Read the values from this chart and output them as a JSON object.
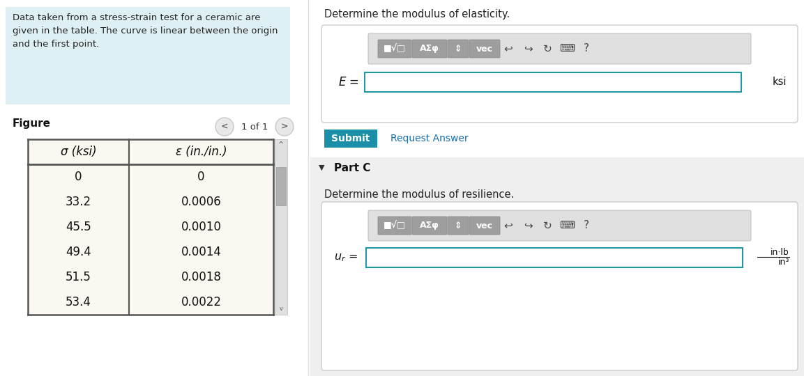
{
  "bg_color": "#ffffff",
  "left_panel_bg": "#dff0f5",
  "left_panel_text": "Data taken from a stress-strain test for a ceramic are\ngiven in the table. The curve is linear between the origin\nand the first point.",
  "figure_label": "Figure",
  "pagination": "1 of 1",
  "table_header_sigma": "σ (ksi)",
  "table_header_epsilon": "ε (in./in.)",
  "table_data_sigma": [
    "0",
    "33.2",
    "45.5",
    "49.4",
    "51.5",
    "53.4"
  ],
  "table_data_epsilon": [
    "0",
    "0.0006",
    "0.0010",
    "0.0014",
    "0.0018",
    "0.0022"
  ],
  "table_bg": "#faf8f0",
  "right_title1": "Determine the modulus of elasticity.",
  "E_label": "E =",
  "E_unit": "ksi",
  "input_border_color": "#2196a8",
  "submit_bg": "#1b8fa8",
  "submit_text": "Submit",
  "submit_text_color": "#ffffff",
  "request_answer_text": "Request Answer",
  "request_answer_color": "#1a6ea8",
  "part_c_label": "Part C",
  "part_c_bg": "#eeeeee",
  "right_title2": "Determine the modulus of resilience.",
  "ur_unit_top": "in·lb",
  "ur_unit_bot": "in³",
  "scrollbar_color": "#b0b0b0"
}
